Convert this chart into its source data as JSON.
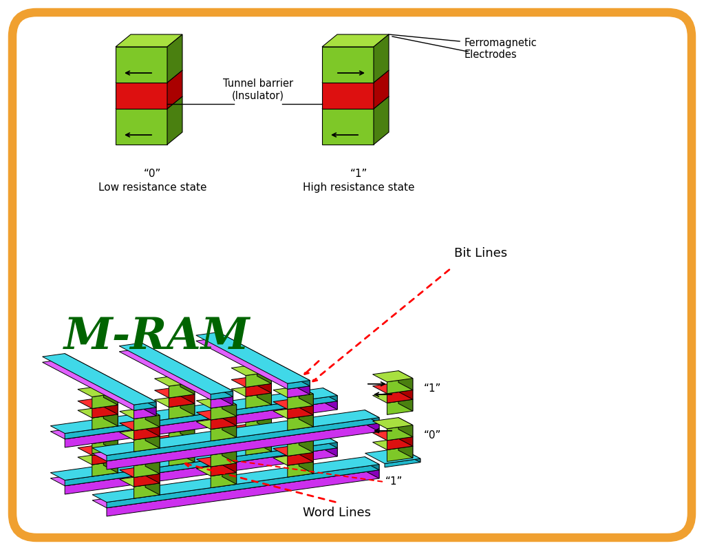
{
  "background_color": "#ffffff",
  "border_color": "#f0a030",
  "green_face": "#7ec828",
  "green_top": "#a8e040",
  "green_side": "#4a8010",
  "red_face": "#dd1010",
  "red_top": "#ff3030",
  "red_side": "#aa0000",
  "cyan_face": "#20b8cc",
  "cyan_top": "#40d8e8",
  "cyan_side": "#108898",
  "mag_face": "#cc30ee",
  "mag_top": "#e060ff",
  "mag_side": "#8800bb",
  "black": "#000000",
  "mram_color": "#006400",
  "label_0_top": "“0”",
  "label_0_sub": "Low resistance state",
  "label_1_top": "“1”",
  "label_1_sub": "High resistance state",
  "tunnel_label": "Tunnel barrier\n(Insulator)",
  "ferro_label": "Ferromagnetic\nElectrodes",
  "bit_lines_label": "Bit Lines",
  "word_lines_label": "Word Lines",
  "label_0": "“0”",
  "label_1": "“1”",
  "mram_label": "M-RAM"
}
